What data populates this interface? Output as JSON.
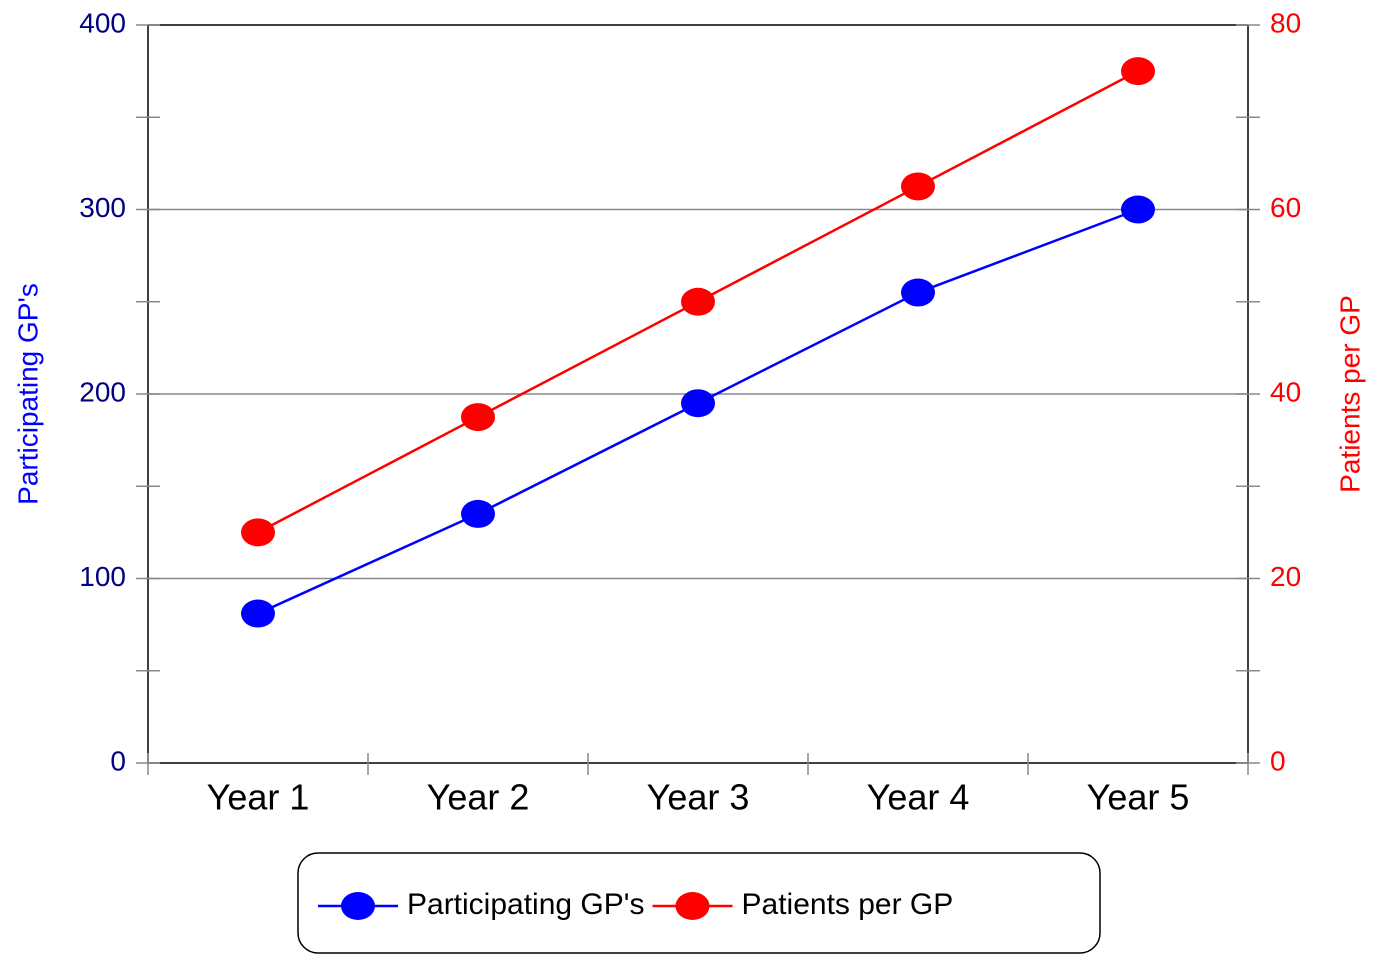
{
  "chart_data": {
    "type": "line",
    "categories": [
      "Year 1",
      "Year 2",
      "Year 3",
      "Year 4",
      "Year 5"
    ],
    "series": [
      {
        "name": "Participating GP's",
        "color": "#0000ff",
        "values": [
          81,
          135,
          195,
          255,
          300
        ],
        "axis": "y"
      },
      {
        "name": "Patients per GP",
        "color": "#ff0000",
        "values": [
          25,
          37.5,
          50,
          62.5,
          75
        ],
        "axis": "y2"
      }
    ],
    "ylabel": "Participating GP's",
    "y2label": "Patients per GP",
    "ylim": [
      0,
      400
    ],
    "yticks": [
      0,
      100,
      200,
      300,
      400
    ],
    "y2lim": [
      0,
      80
    ],
    "y2ticks": [
      0,
      20,
      40,
      60,
      80
    ],
    "ytick_color": "#000080",
    "ylabel_color": "#0000ff",
    "y2_color": "#ff0000",
    "grid": true,
    "legend": "bottom"
  }
}
